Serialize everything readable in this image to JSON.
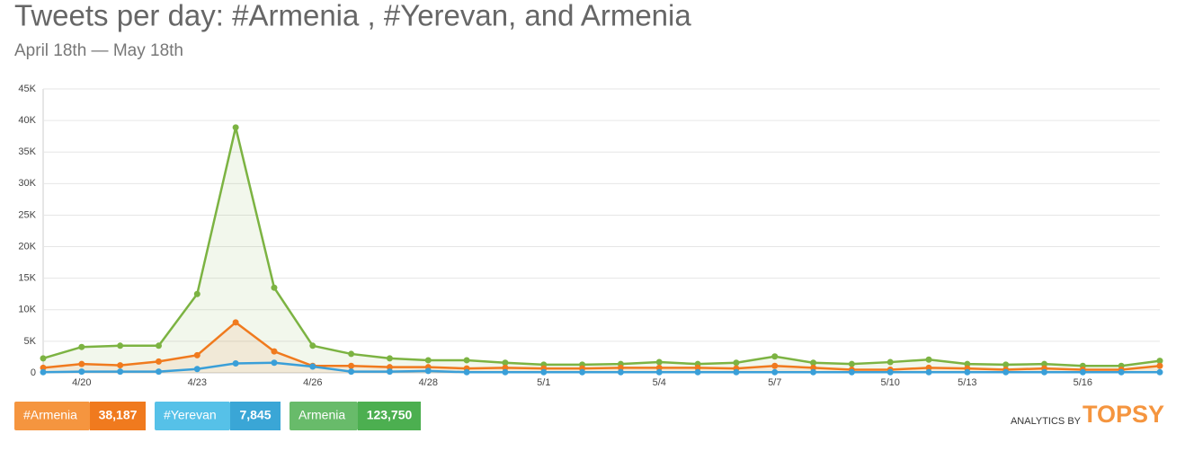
{
  "chart_data": {
    "type": "line",
    "title": "Tweets per day: #Armenia , #Yerevan, and Armenia",
    "subtitle": "April 18th — May 18th",
    "categories": [
      null,
      "4/20",
      null,
      null,
      "4/23",
      null,
      null,
      "4/26",
      null,
      null,
      "4/28",
      null,
      null,
      "5/1",
      null,
      null,
      "5/4",
      null,
      null,
      "5/7",
      null,
      null,
      "5/10",
      null,
      "5/13",
      null,
      null,
      "5/16",
      null,
      null
    ],
    "ylim": [
      0,
      45000
    ],
    "yticks": [
      0,
      {
        "value": 5000,
        "label": "5K"
      },
      {
        "value": 10000,
        "label": "10K"
      },
      {
        "value": 15000,
        "label": "15K"
      },
      {
        "value": 20000,
        "label": "20K"
      },
      {
        "value": 25000,
        "label": "25K"
      },
      {
        "value": 30000,
        "label": "30K"
      },
      {
        "value": 35000,
        "label": "35K"
      },
      {
        "value": 40000,
        "label": "40K"
      },
      {
        "value": 45000,
        "label": "45K"
      }
    ],
    "grid": true,
    "series": [
      {
        "name": "Armenia",
        "color": "#7cb342",
        "light": "#68bb6a",
        "dark": "#4caf50",
        "total": {
          "value": 123750,
          "label": "123,750"
        },
        "values": [
          2300,
          4100,
          4300,
          4300,
          12500,
          38900,
          13500,
          4300,
          3000,
          2300,
          2000,
          2000,
          1600,
          1300,
          1300,
          1400,
          1700,
          1400,
          1600,
          2600,
          1600,
          1400,
          1700,
          2100,
          1400,
          1300,
          1400,
          1100,
          1100,
          1900
        ]
      },
      {
        "name": "#Armenia",
        "color": "#f07a1e",
        "light": "#f5953f",
        "dark": "#f07a1e",
        "total": {
          "value": 38187,
          "label": "38,187"
        },
        "values": [
          800,
          1400,
          1200,
          1800,
          2800,
          8000,
          3400,
          1100,
          1100,
          900,
          900,
          700,
          800,
          700,
          700,
          800,
          800,
          800,
          700,
          1100,
          800,
          500,
          500,
          800,
          700,
          500,
          700,
          500,
          500,
          1100
        ]
      },
      {
        "name": "#Yerevan",
        "color": "#3a9fd8",
        "light": "#56c1e8",
        "dark": "#3aa6d6",
        "total": {
          "value": 7845,
          "label": "7,845"
        },
        "values": [
          100,
          200,
          200,
          200,
          600,
          1500,
          1600,
          1000,
          200,
          200,
          300,
          100,
          100,
          100,
          100,
          100,
          100,
          100,
          100,
          100,
          100,
          100,
          100,
          100,
          100,
          100,
          100,
          100,
          100,
          100
        ]
      }
    ],
    "legend_order": [
      1,
      2,
      0
    ],
    "branding": {
      "prefix": "ANALYTICS BY",
      "brand": "TOPSY"
    }
  }
}
